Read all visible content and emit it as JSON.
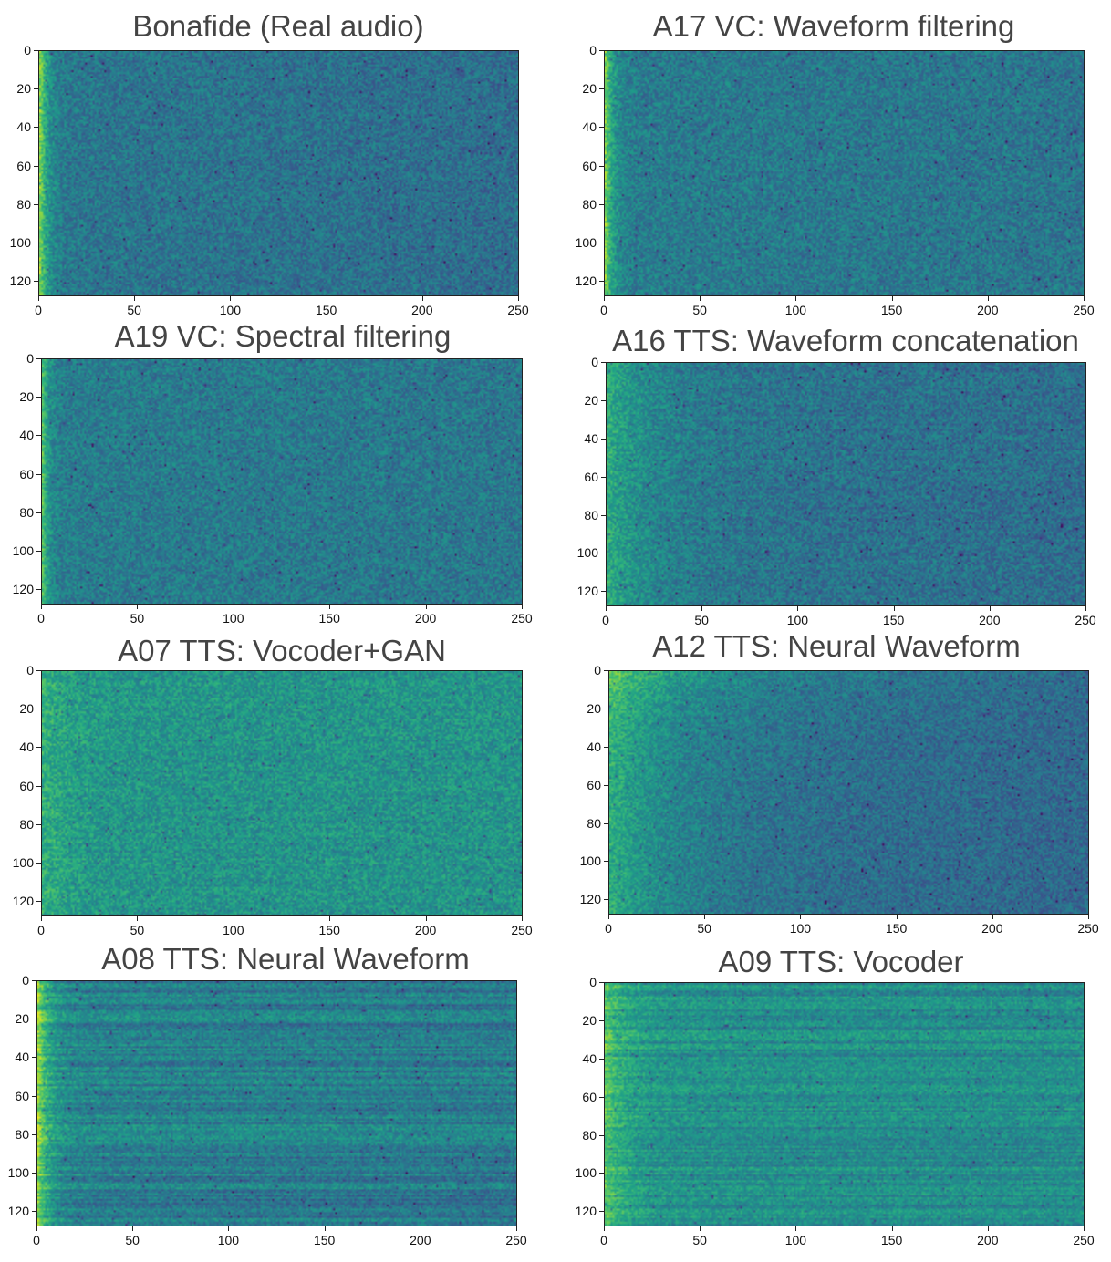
{
  "chart_data": [
    {
      "type": "heatmap",
      "title": "Bonafide (Real audio)",
      "xlim": [
        0,
        250
      ],
      "ylim": [
        128,
        0
      ],
      "x_ticks": [
        0,
        50,
        100,
        150,
        200,
        250
      ],
      "y_ticks": [
        0,
        20,
        40,
        60,
        80,
        100,
        120
      ],
      "colormap": "viridis",
      "texture": "bonafide"
    },
    {
      "type": "heatmap",
      "title": "A17 VC: Waveform filtering",
      "xlim": [
        0,
        250
      ],
      "ylim": [
        128,
        0
      ],
      "x_ticks": [
        0,
        50,
        100,
        150,
        200,
        250
      ],
      "y_ticks": [
        0,
        20,
        40,
        60,
        80,
        100,
        120
      ],
      "colormap": "viridis",
      "texture": "a17"
    },
    {
      "type": "heatmap",
      "title": "A19 VC: Spectral filtering",
      "xlim": [
        0,
        250
      ],
      "ylim": [
        128,
        0
      ],
      "x_ticks": [
        0,
        50,
        100,
        150,
        200,
        250
      ],
      "y_ticks": [
        0,
        20,
        40,
        60,
        80,
        100,
        120
      ],
      "colormap": "viridis",
      "texture": "a19"
    },
    {
      "type": "heatmap",
      "title": "A16 TTS: Waveform concatenation",
      "xlim": [
        0,
        250
      ],
      "ylim": [
        128,
        0
      ],
      "x_ticks": [
        0,
        50,
        100,
        150,
        200,
        250
      ],
      "y_ticks": [
        0,
        20,
        40,
        60,
        80,
        100,
        120
      ],
      "colormap": "viridis",
      "texture": "a16"
    },
    {
      "type": "heatmap",
      "title": "A07 TTS: Vocoder+GAN",
      "xlim": [
        0,
        250
      ],
      "ylim": [
        128,
        0
      ],
      "x_ticks": [
        0,
        50,
        100,
        150,
        200,
        250
      ],
      "y_ticks": [
        0,
        20,
        40,
        60,
        80,
        100,
        120
      ],
      "colormap": "viridis",
      "texture": "a07"
    },
    {
      "type": "heatmap",
      "title": "A12 TTS: Neural Waveform",
      "xlim": [
        0,
        250
      ],
      "ylim": [
        128,
        0
      ],
      "x_ticks": [
        0,
        50,
        100,
        150,
        200,
        250
      ],
      "y_ticks": [
        0,
        20,
        40,
        60,
        80,
        100,
        120
      ],
      "colormap": "viridis",
      "texture": "a12"
    },
    {
      "type": "heatmap",
      "title": "A08 TTS: Neural Waveform",
      "xlim": [
        0,
        250
      ],
      "ylim": [
        128,
        0
      ],
      "x_ticks": [
        0,
        50,
        100,
        150,
        200,
        250
      ],
      "y_ticks": [
        0,
        20,
        40,
        60,
        80,
        100,
        120
      ],
      "colormap": "viridis",
      "texture": "a08"
    },
    {
      "type": "heatmap",
      "title": "A09 TTS: Vocoder",
      "xlim": [
        0,
        250
      ],
      "ylim": [
        128,
        0
      ],
      "x_ticks": [
        0,
        50,
        100,
        150,
        200,
        250
      ],
      "y_ticks": [
        0,
        20,
        40,
        60,
        80,
        100,
        120
      ],
      "colormap": "viridis",
      "texture": "a09"
    }
  ]
}
